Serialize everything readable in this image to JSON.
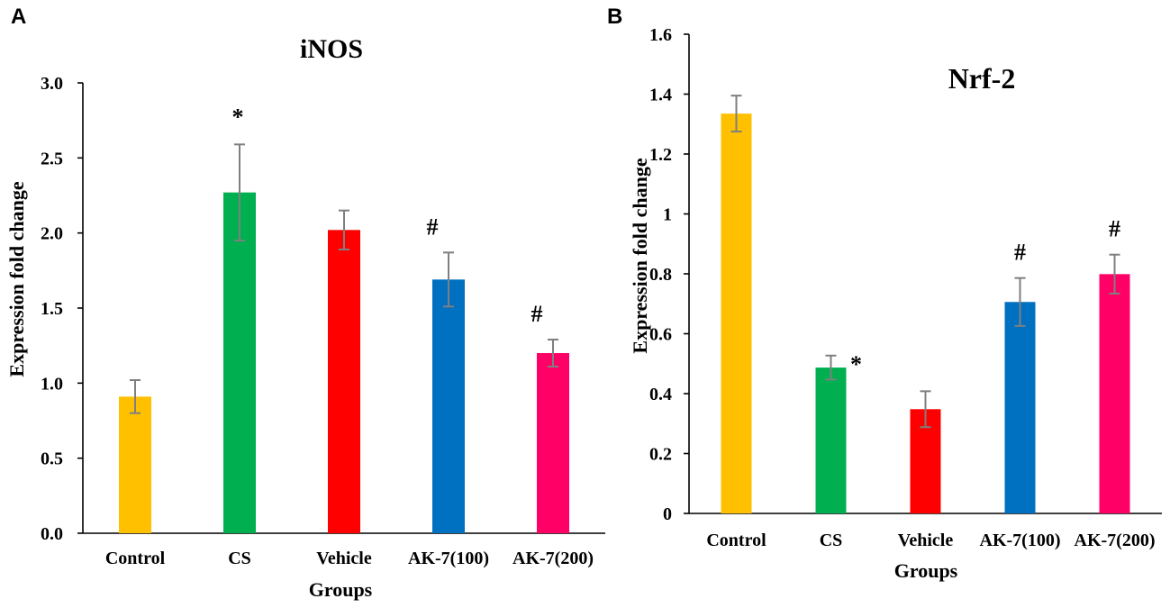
{
  "chart_data": [
    {
      "panel": "A",
      "type": "bar",
      "title": "iNOS",
      "xlabel": "Groups",
      "ylabel": "Expression fold change",
      "ylim": [
        0,
        3.0
      ],
      "ytick_labels": [
        "0.0",
        "0.5",
        "1.0",
        "1.5",
        "2.0",
        "2.5",
        "3.0"
      ],
      "categories": [
        "Control",
        "CS",
        "Vehicle",
        "AK-7(100)",
        "AK-7(200)"
      ],
      "values": [
        0.91,
        2.27,
        2.02,
        1.69,
        1.2
      ],
      "errors": [
        0.11,
        0.32,
        0.13,
        0.18,
        0.09
      ],
      "colors": [
        "#FFC000",
        "#00B050",
        "#FF0000",
        "#0070C0",
        "#FF0066"
      ],
      "annotations": [
        "",
        "*",
        "",
        "#",
        "#"
      ]
    },
    {
      "panel": "B",
      "type": "bar",
      "title": "Nrf-2",
      "xlabel": "Groups",
      "ylabel": "Expression fold change",
      "ylim": [
        0,
        1.6
      ],
      "ytick_labels": [
        "0",
        "0.2",
        "0.4",
        "0.6",
        "0.8",
        "1",
        "1.2",
        "1.4",
        "1.6"
      ],
      "categories": [
        "Control",
        "CS",
        "Vehicle",
        "AK-7(100)",
        "AK-7(200)"
      ],
      "values": [
        1.335,
        0.487,
        0.348,
        0.706,
        0.799
      ],
      "errors": [
        0.06,
        0.04,
        0.06,
        0.08,
        0.065
      ],
      "colors": [
        "#FFC000",
        "#00B050",
        "#FF0000",
        "#0070C0",
        "#FF0066"
      ],
      "annotations": [
        "",
        "*",
        "",
        "#",
        "#"
      ]
    }
  ]
}
